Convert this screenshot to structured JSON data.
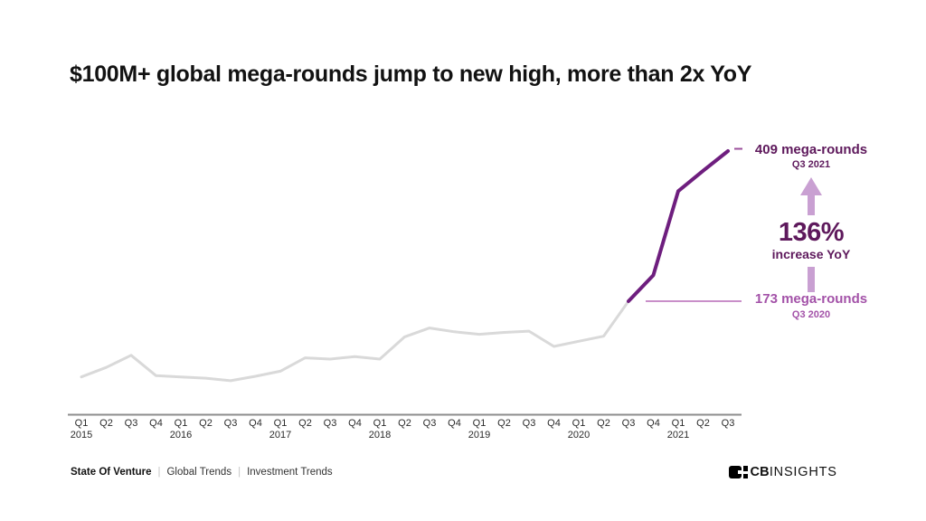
{
  "title": "$100M+ global mega-rounds jump to new high, more than 2x YoY",
  "chart_data": {
    "type": "line",
    "title": "$100M+ global mega-rounds jump to new high, more than 2x YoY",
    "unit": "mega-rounds per quarter",
    "x": [
      "Q1 2015",
      "Q2 2015",
      "Q3 2015",
      "Q4 2015",
      "Q1 2016",
      "Q2 2016",
      "Q3 2016",
      "Q4 2016",
      "Q1 2017",
      "Q2 2017",
      "Q3 2017",
      "Q4 2017",
      "Q1 2018",
      "Q2 2018",
      "Q3 2018",
      "Q4 2018",
      "Q1 2019",
      "Q2 2019",
      "Q3 2019",
      "Q4 2019",
      "Q1 2020",
      "Q2 2020",
      "Q3 2020",
      "Q4 2020",
      "Q1 2021",
      "Q2 2021",
      "Q3 2021"
    ],
    "values": [
      54,
      69,
      88,
      56,
      54,
      52,
      48,
      55,
      63,
      84,
      82,
      86,
      82,
      117,
      131,
      125,
      121,
      124,
      126,
      102,
      110,
      118,
      173,
      214,
      346,
      378,
      409
    ],
    "highlight_from": "Q3 2020",
    "annotated_points": [
      {
        "x": "Q3 2020",
        "value": 173,
        "label": "173 mega-rounds"
      },
      {
        "x": "Q3 2021",
        "value": 409,
        "label": "409 mega-rounds"
      }
    ],
    "ylim": [
      0,
      440
    ],
    "grid": false,
    "legend": "none",
    "xlabel": "",
    "ylabel": ""
  },
  "annotations": {
    "peak": {
      "label": "409 mega-rounds",
      "sublabel": "Q3 2021"
    },
    "change": {
      "value": "136%",
      "label": "increase YoY"
    },
    "baseline": {
      "label": "173 mega-rounds",
      "sublabel": "Q3 2020"
    }
  },
  "footer": {
    "brand": "State Of Venture",
    "separator": "|",
    "links": [
      "Global Trends",
      "Investment Trends"
    ],
    "logo_cb": "CB",
    "logo_insights": "INSIGHTS"
  },
  "colors": {
    "history_line": "#d9d9d9",
    "highlight_line": "#6e1e7e",
    "dark_purple_text": "#5e195c",
    "medium_purple_text": "#a352a8",
    "lilac_arrow": "#c9a0d2",
    "callout_line": "#b76ab7",
    "tick_dash": "#9b4f9b",
    "axis_line": "#8d8d8d",
    "axis_text": "#2b2b2b",
    "title_text": "#121212"
  }
}
